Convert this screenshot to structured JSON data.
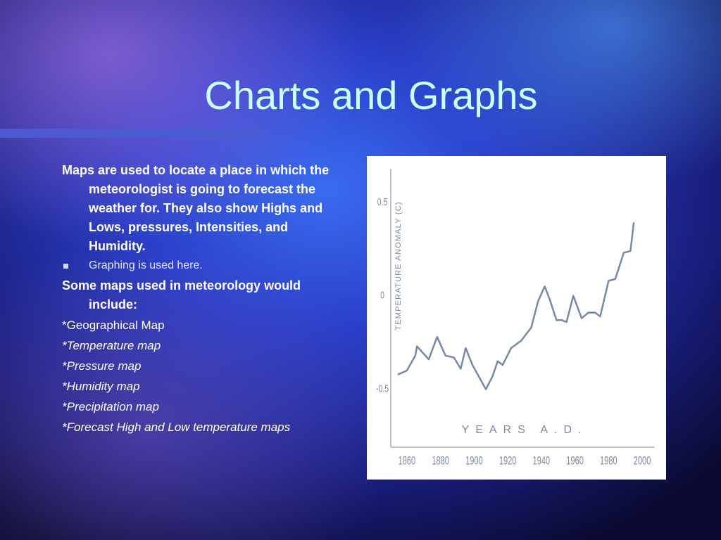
{
  "slide": {
    "title": "Charts and Graphs"
  },
  "body": {
    "items": [
      {
        "text": "Maps are used to locate a place in which the meteorologist is going to forecast the weather for. They also show Highs and Lows, pressures, Intensities, and Humidity."
      },
      {
        "text": "Graphing is used here."
      },
      {
        "text": "Some maps used in meteorology would include:"
      },
      {
        "text": "*Geographical Map"
      },
      {
        "text": "*Temperature map"
      },
      {
        "text": "*Pressure map"
      },
      {
        "text": "*Humidity map"
      },
      {
        "text": "*Precipitation map"
      },
      {
        "text": "*Forecast High and Low temperature maps"
      }
    ]
  },
  "chart_data": {
    "type": "line",
    "y_label": "TEMPERATURE ANOMALY (C)",
    "x_label": "YEARS A.D.",
    "x": [
      1855,
      1860,
      1865,
      1866,
      1869,
      1873,
      1878,
      1883,
      1888,
      1892,
      1895,
      1899,
      1907,
      1911,
      1914,
      1917,
      1922,
      1928,
      1934,
      1938,
      1942,
      1945,
      1949,
      1952,
      1955,
      1959,
      1964,
      1968,
      1972,
      1975,
      1980,
      1984,
      1989,
      1993,
      1995
    ],
    "values": [
      -0.42,
      -0.4,
      -0.32,
      -0.27,
      -0.3,
      -0.34,
      -0.22,
      -0.32,
      -0.33,
      -0.39,
      -0.28,
      -0.37,
      -0.5,
      -0.43,
      -0.35,
      -0.37,
      -0.28,
      -0.24,
      -0.17,
      -0.03,
      0.05,
      -0.02,
      -0.13,
      -0.13,
      -0.14,
      0.0,
      -0.12,
      -0.09,
      -0.09,
      -0.11,
      0.08,
      0.09,
      0.23,
      0.24,
      0.39
    ],
    "color": "#7888a8",
    "xlim": [
      1850,
      2005
    ],
    "xticks": [
      1860,
      1880,
      1900,
      1920,
      1940,
      1960,
      1980,
      2000
    ],
    "ylim": [
      -0.81,
      0.68
    ],
    "yticks": [
      -0.5,
      0,
      0.5
    ],
    "grid": false
  }
}
